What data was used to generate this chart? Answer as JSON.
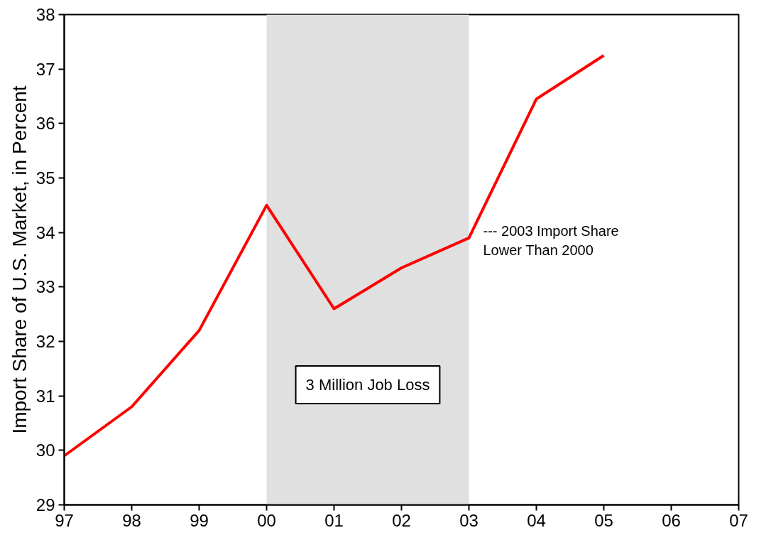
{
  "chart_data": {
    "type": "line",
    "ylabel": "Import Share of U.S. Market, in Percent",
    "x": [
      1997,
      1998,
      1999,
      2000,
      2001,
      2002,
      2003,
      2004,
      2005
    ],
    "series": [
      {
        "color": "#ff0000",
        "values": [
          29.9,
          30.8,
          32.2,
          34.5,
          32.6,
          33.35,
          33.9,
          36.45,
          37.25
        ]
      }
    ],
    "xlim": [
      1997,
      2007
    ],
    "xticks": [
      {
        "value": 1997,
        "label": "97"
      },
      {
        "value": 1998,
        "label": "98"
      },
      {
        "value": 1999,
        "label": "99"
      },
      {
        "value": 2000,
        "label": "00"
      },
      {
        "value": 2001,
        "label": "01"
      },
      {
        "value": 2002,
        "label": "02"
      },
      {
        "value": 2003,
        "label": "03"
      },
      {
        "value": 2004,
        "label": "04"
      },
      {
        "value": 2005,
        "label": "05"
      },
      {
        "value": 2006,
        "label": "06"
      },
      {
        "value": 2007,
        "label": "07"
      }
    ],
    "ylim": [
      29,
      38
    ],
    "yticks": [
      29,
      30,
      31,
      32,
      33,
      34,
      35,
      36,
      37,
      38
    ],
    "bands": [
      {
        "axis": "x",
        "from": 2000,
        "to": 2003,
        "label": "3 Million Job Loss",
        "color": "#e0e0e0"
      }
    ],
    "annotations": [
      {
        "text": "--- 2003 Import Share\nLower Than 2000",
        "x": 2003,
        "y": 33.9
      }
    ],
    "grid": false,
    "marker": "none",
    "line_style": "solid"
  }
}
